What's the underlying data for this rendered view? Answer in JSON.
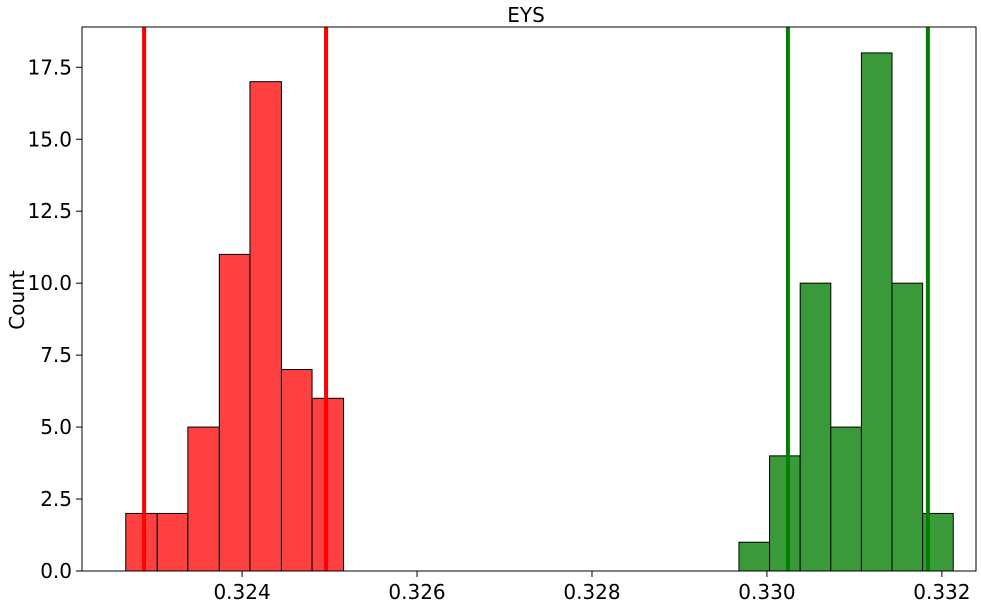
{
  "chart_data": {
    "type": "bar",
    "title": "EYS",
    "xlabel": "",
    "ylabel": "Count",
    "xlim": [
      0.32217,
      0.33239
    ],
    "ylim": [
      0,
      18.9
    ],
    "xticks": [
      0.324,
      0.326,
      0.328,
      0.33,
      0.332
    ],
    "xtick_labels": [
      "0.324",
      "0.326",
      "0.328",
      "0.330",
      "0.332"
    ],
    "yticks": [
      0.0,
      2.5,
      5.0,
      7.5,
      10.0,
      12.5,
      15.0,
      17.5
    ],
    "ytick_labels": [
      "0.0",
      "2.5",
      "5.0",
      "7.5",
      "10.0",
      "12.5",
      "15.0",
      "17.5"
    ],
    "grid": false,
    "series": [
      {
        "color": "#ff4040",
        "edge_color": "#000000",
        "bins": [
          {
            "x0": 0.32267,
            "x1": 0.32303,
            "count": 2
          },
          {
            "x0": 0.32303,
            "x1": 0.32338,
            "count": 2
          },
          {
            "x0": 0.32338,
            "x1": 0.32374,
            "count": 5
          },
          {
            "x0": 0.32374,
            "x1": 0.32409,
            "count": 11
          },
          {
            "x0": 0.32409,
            "x1": 0.32445,
            "count": 17
          },
          {
            "x0": 0.32445,
            "x1": 0.3248,
            "count": 7
          },
          {
            "x0": 0.3248,
            "x1": 0.32516,
            "count": 6
          }
        ],
        "vlines": [
          0.32288,
          0.32496
        ],
        "vline_color": "#ff0000"
      },
      {
        "color": "#3a9a3a",
        "edge_color": "#000000",
        "bins": [
          {
            "x0": 0.32968,
            "x1": 0.33003,
            "count": 1
          },
          {
            "x0": 0.33003,
            "x1": 0.33038,
            "count": 4
          },
          {
            "x0": 0.33038,
            "x1": 0.33073,
            "count": 10
          },
          {
            "x0": 0.33073,
            "x1": 0.33108,
            "count": 5
          },
          {
            "x0": 0.33108,
            "x1": 0.33143,
            "count": 18
          },
          {
            "x0": 0.33143,
            "x1": 0.33178,
            "count": 10
          },
          {
            "x0": 0.33178,
            "x1": 0.33213,
            "count": 2
          }
        ],
        "vlines": [
          0.33024,
          0.33184
        ],
        "vline_color": "#008000"
      }
    ]
  }
}
